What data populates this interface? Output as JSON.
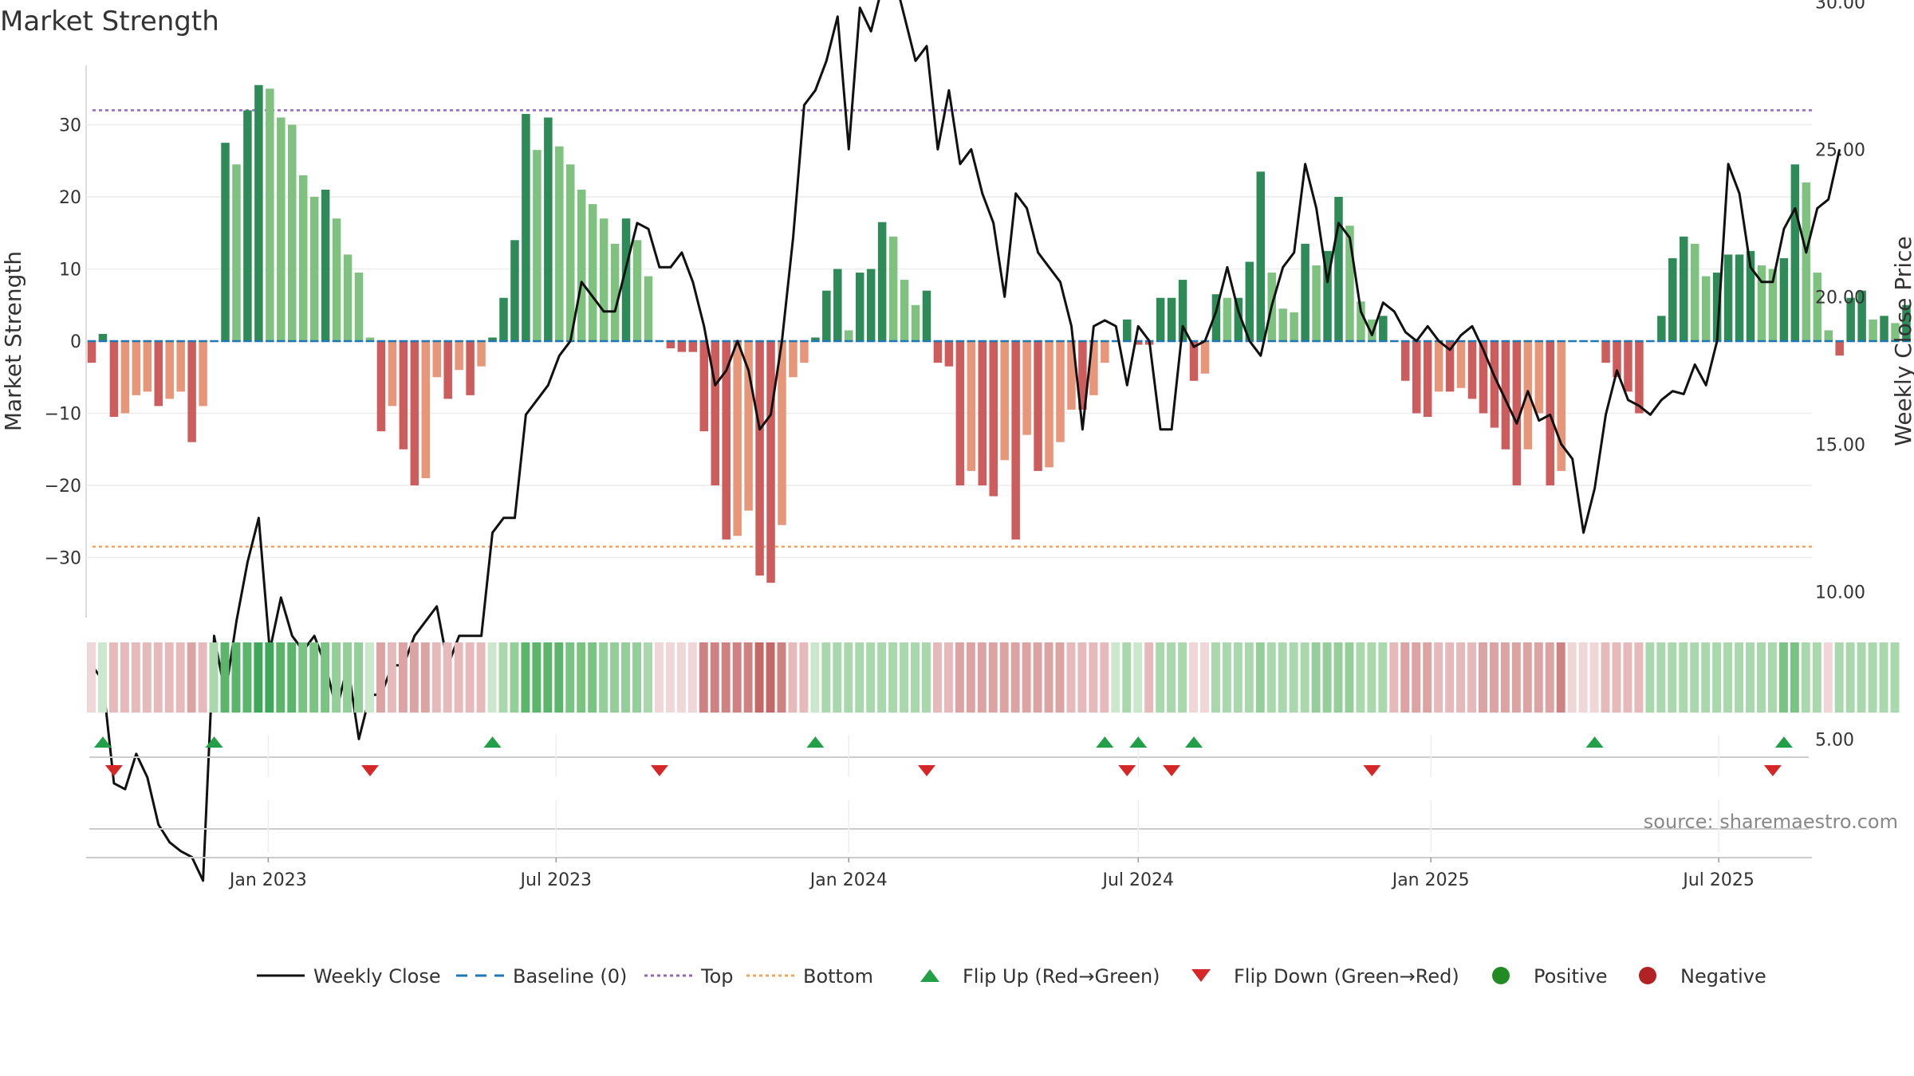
{
  "chart_data": {
    "type": "bar",
    "title": "Market Strength",
    "ylabel_left": "Market Strength",
    "ylabel_right": "Weekly Close Price",
    "source": "source: sharemaestro.com",
    "x_start": "2022-09-12",
    "x_ticks": [
      "Jan 2023",
      "Jul 2023",
      "Jan 2024",
      "Jul 2024",
      "Jan 2025",
      "Jul 2025"
    ],
    "y_left_ticks": [
      "30",
      "20",
      "10",
      "0",
      "−10",
      "−20",
      "−30"
    ],
    "y_left_lim": [
      -38,
      38
    ],
    "y_right_ticks": [
      "30.00",
      "25.00",
      "20.00",
      "15.00",
      "10.00",
      "5.00"
    ],
    "y_right_lim": [
      1.5,
      32
    ],
    "top_line": 32,
    "bottom_line": -28.5,
    "grid": true,
    "strength": [
      -3,
      1,
      -10.5,
      -10,
      -7.5,
      -7,
      -9,
      -8,
      -7,
      -14,
      -9,
      0,
      27.5,
      24.5,
      32,
      35.5,
      35,
      31,
      30,
      23,
      20,
      21,
      17,
      12,
      9.5,
      0.5,
      -12.5,
      -9,
      -15,
      -20,
      -19,
      -5,
      -8,
      -4,
      -7.5,
      -3.5,
      0.5,
      6,
      14,
      31.5,
      26.5,
      31,
      27,
      24.5,
      21,
      19,
      17,
      13.5,
      17,
      14,
      9,
      0,
      -1,
      -1.5,
      -1.5,
      -12.5,
      -20,
      -27.5,
      -27,
      -23.5,
      -32.5,
      -33.5,
      -25.5,
      -5,
      -3,
      0.5,
      7,
      10,
      1.5,
      9.5,
      10,
      16.5,
      14.5,
      8.5,
      5,
      7,
      -3,
      -3.5,
      -20,
      -18,
      -20,
      -21.5,
      -16.5,
      -27.5,
      -13,
      -18,
      -17.5,
      -14,
      -9.5,
      -9.5,
      -7.5,
      -3,
      0,
      3,
      -0.5,
      -0.5,
      6,
      6,
      8.5,
      -5.5,
      -4.5,
      6.5,
      6,
      6,
      11,
      23.5,
      9.5,
      4.5,
      4,
      13.5,
      10.5,
      12.5,
      20,
      16,
      5.5,
      3,
      3.5,
      0,
      -5.5,
      -10,
      -10.5,
      -7,
      -7,
      -6.5,
      -8,
      -10,
      -12,
      -15,
      -20,
      -15,
      -10,
      -20,
      -18,
      0,
      0,
      0,
      -3,
      -5,
      -7,
      -10,
      0,
      3.5,
      11.5,
      14.5,
      13.5,
      9,
      9.5,
      12,
      12,
      12.5,
      10.5,
      10,
      11.5,
      24.5,
      22,
      9.5,
      1.5,
      -2,
      6,
      7,
      3,
      3.5,
      2.5,
      5
    ],
    "weekly_close": [
      7.5,
      7,
      3.5,
      3.3,
      4.5,
      3.7,
      2.1,
      1.5,
      1.2,
      1,
      0.2,
      8.5,
      6.5,
      9,
      11,
      12.5,
      8,
      9.8,
      8.5,
      8,
      8.5,
      7.5,
      6,
      7.5,
      5,
      6.5,
      6.5,
      7.5,
      7.5,
      8.5,
      9,
      9.5,
      7.5,
      8.5,
      8.5,
      8.5,
      12,
      12.5,
      12.5,
      16,
      16.5,
      17,
      18,
      18.5,
      20.5,
      20,
      19.5,
      19.5,
      21,
      22.5,
      22.3,
      21,
      21,
      21.5,
      20.5,
      19,
      17,
      17.5,
      18.5,
      17.5,
      15.5,
      16,
      18.5,
      22,
      26.5,
      27,
      28,
      29.5,
      25,
      29.8,
      29,
      30.5,
      31,
      29.5,
      28,
      28.5,
      25,
      27,
      24.5,
      25,
      23.5,
      22.5,
      20,
      23.5,
      23,
      21.5,
      21,
      20.5,
      19,
      15.5,
      19,
      19.2,
      19,
      17,
      19,
      18.5,
      15.5,
      15.5,
      19,
      18.3,
      18.5,
      19.5,
      21,
      19.5,
      18.5,
      18,
      19.7,
      21,
      21.5,
      24.5,
      23,
      20.5,
      22.5,
      22,
      19.5,
      18.7,
      19.8,
      19.5,
      18.8,
      18.5,
      19,
      18.5,
      18.2,
      18.7,
      19,
      18.2,
      17.3,
      16.5,
      15.7,
      16.8,
      15.8,
      16,
      15,
      14.5,
      12,
      13.5,
      16,
      17.5,
      16.5,
      16.3,
      16,
      16.5,
      16.8,
      16.7,
      17.7,
      17,
      18.5,
      24.5,
      23.5,
      21,
      20.5,
      20.5,
      22.3,
      23,
      21.5,
      23,
      23.3,
      25
    ],
    "strip_levels": [
      -1,
      1,
      -2,
      -2,
      -2,
      -2,
      -2,
      -2,
      -2,
      -3,
      -2,
      2,
      5,
      5,
      5,
      6,
      6,
      5,
      5,
      4,
      4,
      4,
      3,
      3,
      3,
      1,
      -3,
      -2,
      -3,
      -3,
      -3,
      -2,
      -2,
      -2,
      -2,
      -2,
      1,
      2,
      3,
      5,
      5,
      5,
      5,
      4,
      4,
      4,
      3,
      3,
      3,
      3,
      2,
      -1,
      -1,
      -1,
      -1,
      -4,
      -4,
      -4,
      -4,
      -4,
      -5,
      -5,
      -4,
      -2,
      -2,
      1,
      2,
      2,
      2,
      2,
      2,
      2,
      2,
      2,
      2,
      2,
      -2,
      -2,
      -3,
      -3,
      -3,
      -3,
      -3,
      -3,
      -3,
      -3,
      -3,
      -3,
      -2,
      -2,
      -2,
      -2,
      1,
      2,
      1,
      -2,
      2,
      2,
      2,
      -1,
      -1,
      2,
      2,
      2,
      2,
      3,
      2,
      2,
      2,
      2,
      3,
      3,
      3,
      3,
      2,
      2,
      2,
      -2,
      -3,
      -3,
      -3,
      -2,
      -2,
      -2,
      -2,
      -3,
      -3,
      -3,
      -3,
      -3,
      -3,
      -3,
      -4,
      -1,
      -1,
      -1,
      -2,
      -2,
      -2,
      -2,
      2,
      2,
      2,
      2,
      2,
      2,
      2,
      2,
      2,
      2,
      2,
      2,
      4,
      4,
      2,
      2,
      -1,
      2,
      2,
      2,
      2,
      2,
      2
    ],
    "flip_up_idx": [
      1,
      11,
      36,
      65,
      91,
      94,
      99,
      135,
      152
    ],
    "flip_down_idx": [
      2,
      25,
      51,
      75,
      93,
      97,
      115,
      151
    ],
    "colors": {
      "pos_dark": "#2e8b57",
      "pos_light": "#7fc27f",
      "neg_dark": "#cd5c5c",
      "neg_light": "#e8967a",
      "close_line": "#111111",
      "baseline": "#1f77b4",
      "top_line": "#9467bd",
      "bottom_line": "#f4a460",
      "flip_up": "#22a047",
      "flip_down": "#d62728",
      "positive": "#228b22",
      "negative": "#b22222"
    },
    "legend": [
      {
        "label": "Weekly Close",
        "marker": "line-solid",
        "color": "#111111"
      },
      {
        "label": "Baseline (0)",
        "marker": "line-dash",
        "color": "#1f77b4"
      },
      {
        "label": "Top",
        "marker": "line-dot",
        "color": "#9467bd"
      },
      {
        "label": "Bottom",
        "marker": "line-dot",
        "color": "#f4a460"
      },
      {
        "label": "Flip Up (Red→Green)",
        "marker": "triangle-up",
        "color": "#22a047"
      },
      {
        "label": "Flip Down (Green→Red)",
        "marker": "triangle-down",
        "color": "#d62728"
      },
      {
        "label": "Positive",
        "marker": "circle",
        "color": "#228b22"
      },
      {
        "label": "Negative",
        "marker": "circle",
        "color": "#b22222"
      }
    ],
    "legend_placement": "bottom"
  }
}
